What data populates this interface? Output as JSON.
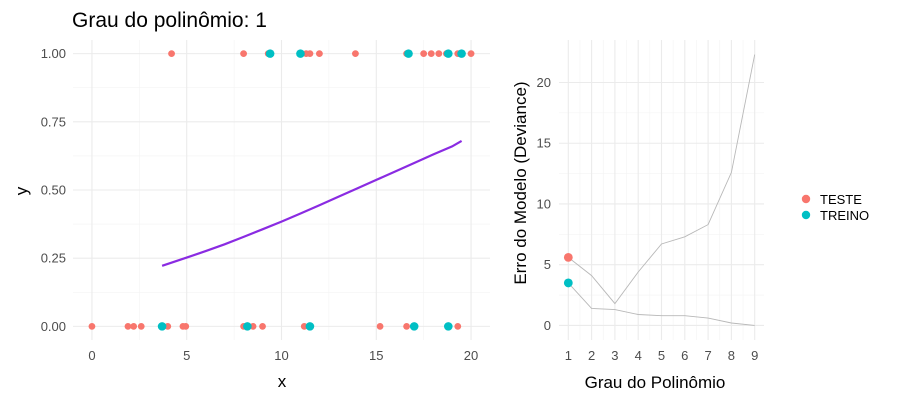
{
  "left_chart": {
    "title": "Grau do polinômio: 1",
    "xlabel": "x",
    "ylabel": "y",
    "xlim": [
      -1,
      21
    ],
    "ylim": [
      -0.05,
      1.05
    ],
    "xticks": [
      {
        "v": 0,
        "label": "0"
      },
      {
        "v": 5,
        "label": "5"
      },
      {
        "v": 10,
        "label": "10"
      },
      {
        "v": 15,
        "label": "15"
      },
      {
        "v": 20,
        "label": "20"
      }
    ],
    "yticks": [
      {
        "v": 0,
        "label": "0.00"
      },
      {
        "v": 0.25,
        "label": "0.25"
      },
      {
        "v": 0.5,
        "label": "0.50"
      },
      {
        "v": 0.75,
        "label": "0.75"
      },
      {
        "v": 1,
        "label": "1.00"
      }
    ],
    "colors": {
      "teste": "#F8766D",
      "treino": "#00BFC4",
      "fit": "#8A2BE2"
    }
  },
  "right_chart": {
    "xlabel": "Grau do Polinômio",
    "ylabel": "Erro do Modelo (Deviance)",
    "xlim": [
      0.6,
      9.4
    ],
    "ylim": [
      -1.2,
      23.5
    ],
    "xticks": [
      {
        "v": 1,
        "label": "1"
      },
      {
        "v": 2,
        "label": "2"
      },
      {
        "v": 3,
        "label": "3"
      },
      {
        "v": 4,
        "label": "4"
      },
      {
        "v": 5,
        "label": "5"
      },
      {
        "v": 6,
        "label": "6"
      },
      {
        "v": 7,
        "label": "7"
      },
      {
        "v": 8,
        "label": "8"
      },
      {
        "v": 9,
        "label": "9"
      }
    ],
    "yticks": [
      {
        "v": 0,
        "label": "0"
      },
      {
        "v": 5,
        "label": "5"
      },
      {
        "v": 10,
        "label": "10"
      },
      {
        "v": 15,
        "label": "15"
      },
      {
        "v": 20,
        "label": "20"
      }
    ]
  },
  "legend": {
    "items": [
      {
        "label": "TESTE",
        "color": "#F8766D"
      },
      {
        "label": "TREINO",
        "color": "#00BFC4"
      }
    ]
  },
  "chart_data": [
    {
      "type": "scatter",
      "title": "Grau do polinômio: 1",
      "xlabel": "x",
      "ylabel": "y",
      "xlim": [
        -1,
        21
      ],
      "ylim": [
        -0.05,
        1.05
      ],
      "grid": true,
      "series": [
        {
          "name": "TESTE",
          "color": "#F8766D",
          "points": [
            [
              0,
              0
            ],
            [
              1.9,
              0
            ],
            [
              2.2,
              0
            ],
            [
              2.6,
              0
            ],
            [
              4.0,
              0
            ],
            [
              4.8,
              0
            ],
            [
              4.95,
              0
            ],
            [
              8.0,
              0
            ],
            [
              8.5,
              0
            ],
            [
              9.0,
              0
            ],
            [
              11.2,
              0
            ],
            [
              15.2,
              0
            ],
            [
              16.6,
              0
            ],
            [
              19.3,
              0
            ],
            [
              4.2,
              1
            ],
            [
              8.0,
              1
            ],
            [
              9.3,
              1
            ],
            [
              11.3,
              1
            ],
            [
              11.5,
              1
            ],
            [
              12.0,
              1
            ],
            [
              13.9,
              1
            ],
            [
              16.6,
              1
            ],
            [
              17.5,
              1
            ],
            [
              17.9,
              1
            ],
            [
              18.3,
              1
            ],
            [
              18.7,
              1
            ],
            [
              19.3,
              1
            ],
            [
              20.0,
              1
            ]
          ]
        },
        {
          "name": "TREINO",
          "color": "#00BFC4",
          "points": [
            [
              3.7,
              0
            ],
            [
              8.2,
              0
            ],
            [
              11.5,
              0
            ],
            [
              17.0,
              0
            ],
            [
              18.8,
              0
            ],
            [
              9.4,
              1
            ],
            [
              11.0,
              1
            ],
            [
              16.7,
              1
            ],
            [
              18.8,
              1
            ],
            [
              19.5,
              1
            ]
          ]
        }
      ],
      "fit_line": {
        "color": "#8A2BE2",
        "points": [
          [
            3.7,
            0.222
          ],
          [
            5,
            0.252
          ],
          [
            6,
            0.276
          ],
          [
            7,
            0.301
          ],
          [
            8,
            0.328
          ],
          [
            9,
            0.356
          ],
          [
            10,
            0.384
          ],
          [
            11,
            0.414
          ],
          [
            12,
            0.444
          ],
          [
            13,
            0.475
          ],
          [
            14,
            0.506
          ],
          [
            15,
            0.537
          ],
          [
            16,
            0.568
          ],
          [
            17,
            0.599
          ],
          [
            18,
            0.63
          ],
          [
            19,
            0.66
          ],
          [
            19.5,
            0.68
          ]
        ]
      }
    },
    {
      "type": "line",
      "xlabel": "Grau do Polinômio",
      "ylabel": "Erro do Modelo (Deviance)",
      "xlim": [
        0.6,
        9.4
      ],
      "ylim": [
        -1.2,
        23.5
      ],
      "grid": true,
      "legend": "right",
      "x": [
        1,
        2,
        3,
        4,
        5,
        6,
        7,
        8,
        9
      ],
      "series": [
        {
          "name": "TESTE",
          "values": [
            5.6,
            4.1,
            1.8,
            4.4,
            6.7,
            7.3,
            8.3,
            12.6,
            22.3
          ]
        },
        {
          "name": "TREINO",
          "values": [
            3.5,
            1.4,
            1.3,
            0.9,
            0.8,
            0.8,
            0.6,
            0.2,
            0.0
          ]
        }
      ],
      "highlight": [
        {
          "series": "TESTE",
          "x": 1,
          "y": 5.6,
          "color": "#F8766D"
        },
        {
          "series": "TREINO",
          "x": 1,
          "y": 3.5,
          "color": "#00BFC4"
        }
      ],
      "line_color": "#b8b8b8"
    }
  ]
}
